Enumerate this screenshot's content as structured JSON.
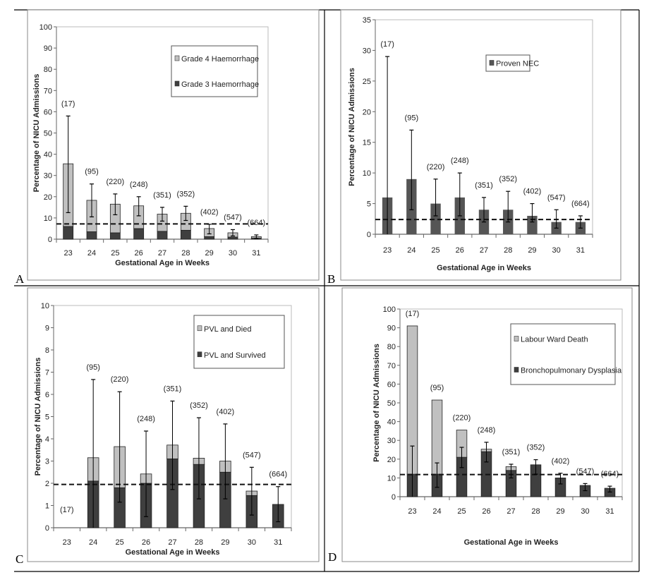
{
  "chart_data": [
    {
      "panel": "A",
      "type": "bar",
      "stacked": true,
      "categories": [
        "23",
        "24",
        "25",
        "26",
        "27",
        "28",
        "29",
        "30",
        "31"
      ],
      "n_labels": [
        "(17)",
        "(95)",
        "(220)",
        "(248)",
        "(351)",
        "(352)",
        "(402)",
        "(547)",
        "(664)"
      ],
      "series": [
        {
          "name": "Grade 3 Haemorrhage",
          "color": "#3f3f3f",
          "values": [
            6,
            3.5,
            3,
            5,
            3.7,
            4.2,
            1.2,
            1,
            0.5
          ]
        },
        {
          "name": "Grade 4 Haemorrhage",
          "color": "#c0c0c0",
          "values": [
            29.5,
            14.8,
            13.5,
            10.7,
            8.1,
            8,
            3.8,
            2,
            0.7
          ]
        }
      ],
      "totals": [
        35.5,
        18.3,
        16.5,
        15.7,
        11.8,
        12.2,
        5,
        3,
        1.2
      ],
      "error_bars": [
        [
          12.5,
          58
        ],
        [
          10.5,
          26
        ],
        [
          11.5,
          21.3
        ],
        [
          11,
          20
        ],
        [
          8.5,
          15
        ],
        [
          8.8,
          15.5
        ],
        [
          2.5,
          7
        ],
        [
          1.5,
          4.5
        ],
        [
          0.3,
          2
        ]
      ],
      "reference_line": 7.2,
      "xlabel": "Gestational Age in Weeks",
      "ylabel": "Percentage of NICU Admissions",
      "ylim": [
        0,
        100
      ],
      "yticks": [
        0,
        10,
        20,
        30,
        40,
        50,
        60,
        70,
        80,
        90,
        100
      ],
      "legend_order": [
        "Grade 4 Haemorrhage",
        "Grade 3 Haemorrhage"
      ],
      "legend": "top-right",
      "panel_label": "A"
    },
    {
      "panel": "B",
      "type": "bar",
      "stacked": false,
      "categories": [
        "23",
        "24",
        "25",
        "26",
        "27",
        "28",
        "29",
        "30",
        "31"
      ],
      "n_labels": [
        "(17)",
        "(95)",
        "(220)",
        "(248)",
        "(351)",
        "(352)",
        "(402)",
        "(547)",
        "(664)"
      ],
      "series": [
        {
          "name": "Proven NEC",
          "color": "#555555",
          "values": [
            6,
            9,
            5,
            6,
            4,
            4,
            3,
            2,
            2
          ]
        }
      ],
      "totals": [
        6,
        9,
        5,
        6,
        4,
        4,
        3,
        2,
        2
      ],
      "error_bars": [
        [
          0,
          29
        ],
        [
          4,
          17
        ],
        [
          3,
          9
        ],
        [
          3,
          10
        ],
        [
          2,
          6
        ],
        [
          2,
          7
        ],
        [
          2,
          5
        ],
        [
          1,
          4
        ],
        [
          1,
          3
        ]
      ],
      "reference_line": 2.4,
      "xlabel": "Gestational Age in Weeks",
      "ylabel": "Percentage of NICU Admissions",
      "ylim": [
        0,
        35
      ],
      "yticks": [
        0,
        5,
        10,
        15,
        20,
        25,
        30,
        35
      ],
      "legend_order": [
        "Proven NEC"
      ],
      "legend": "top-right",
      "panel_label": "B"
    },
    {
      "panel": "C",
      "type": "bar",
      "stacked": true,
      "categories": [
        "23",
        "24",
        "25",
        "26",
        "27",
        "28",
        "29",
        "30",
        "31"
      ],
      "n_labels": [
        "(17)",
        "(95)",
        "(220)",
        "(248)",
        "(351)",
        "(352)",
        "(402)",
        "(547)",
        "(664)"
      ],
      "series": [
        {
          "name": "PVL and Survived",
          "color": "#3f3f3f",
          "values": [
            0,
            2.1,
            1.8,
            2,
            3.1,
            2.85,
            2.5,
            1.45,
            1.05
          ]
        },
        {
          "name": "PVL and Died",
          "color": "#c0c0c0",
          "values": [
            0,
            1.05,
            1.85,
            0.42,
            0.62,
            0.28,
            0.5,
            0.2,
            0
          ]
        }
      ],
      "totals": [
        0,
        3.15,
        3.65,
        2.42,
        3.72,
        3.13,
        3,
        1.65,
        1.05
      ],
      "error_bars": [
        null,
        [
          0,
          6.67
        ],
        [
          1.15,
          6.12
        ],
        [
          0.5,
          4.35
        ],
        [
          1.72,
          5.7
        ],
        [
          1.3,
          4.95
        ],
        [
          1.3,
          4.67
        ],
        [
          0.57,
          2.72
        ],
        [
          0.27,
          1.85
        ]
      ],
      "reference_line": 1.95,
      "xlabel": "Gestational Age in Weeks",
      "ylabel": "Percentage of NICU Admissions",
      "ylim": [
        0,
        10
      ],
      "yticks": [
        0,
        1,
        2,
        3,
        4,
        5,
        6,
        7,
        8,
        9,
        10
      ],
      "legend_order": [
        "PVL and Died",
        "PVL and Survived"
      ],
      "legend": "top-right",
      "panel_label": "C"
    },
    {
      "panel": "D",
      "type": "bar",
      "stacked": true,
      "categories": [
        "23",
        "24",
        "25",
        "26",
        "27",
        "28",
        "29",
        "30",
        "31"
      ],
      "n_labels": [
        "(17)",
        "(95)",
        "(220)",
        "(248)",
        "(351)",
        "(352)",
        "(402)",
        "(547)",
        "(664)"
      ],
      "series": [
        {
          "name": "Bronchopulmonary Dysplasia",
          "color": "#3f3f3f",
          "values": [
            12,
            12,
            21,
            24,
            14,
            17,
            10,
            6,
            4.5
          ]
        },
        {
          "name": "Labour Ward Death",
          "color": "#c0c0c0",
          "values": [
            79,
            39.5,
            14.5,
            1.3,
            2,
            0,
            0,
            0,
            0
          ]
        }
      ],
      "totals": [
        91,
        51.5,
        35.5,
        25.3,
        16,
        17,
        10,
        6,
        4.5
      ],
      "error_bars": [
        [
          0,
          27
        ],
        [
          5,
          18
        ],
        [
          15.5,
          26.3
        ],
        [
          18.5,
          29
        ],
        [
          10,
          17.3
        ],
        [
          12,
          19.7
        ],
        [
          6.8,
          12.5
        ],
        [
          3.2,
          7
        ],
        [
          2.5,
          5.6
        ]
      ],
      "reference_line": 11.8,
      "xlabel": "Gestational Age in Weeks",
      "ylabel": "Percentage of NICU Admissions",
      "ylim": [
        0,
        100
      ],
      "yticks": [
        0,
        10,
        20,
        30,
        40,
        50,
        60,
        70,
        80,
        90,
        100
      ],
      "legend_order": [
        "Labour Ward Death",
        "Bronchopulmonary Dysplasia"
      ],
      "legend": "top-right",
      "panel_label": "D"
    }
  ]
}
